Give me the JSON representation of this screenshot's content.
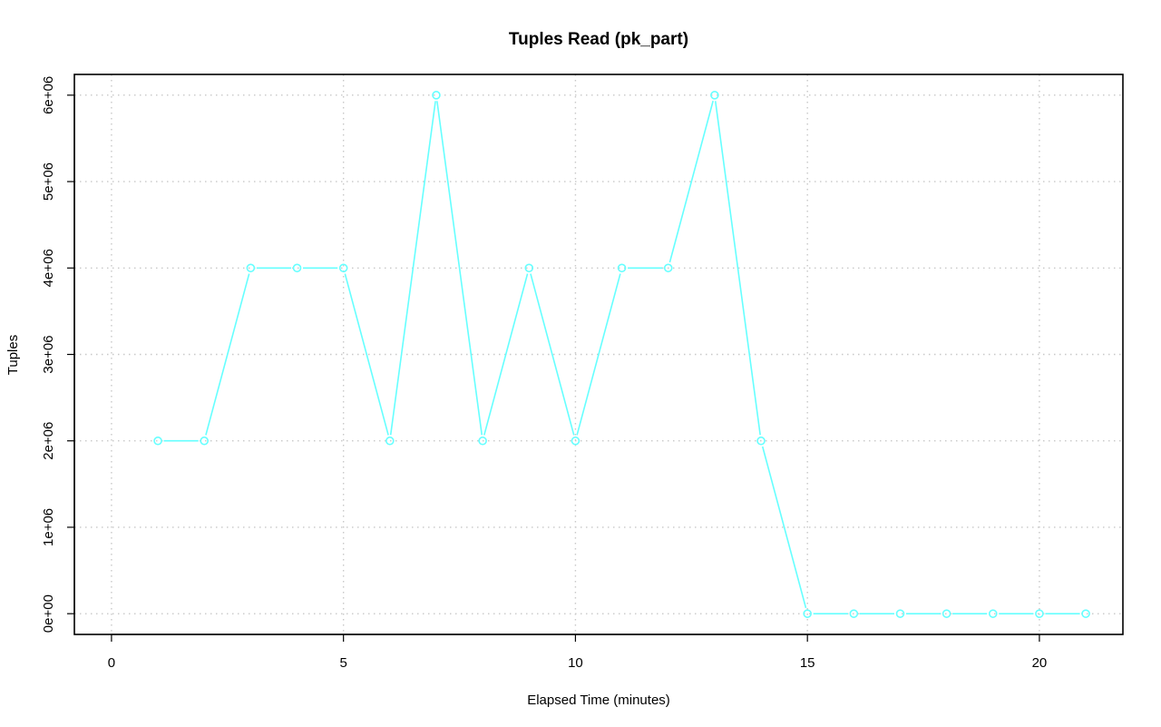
{
  "chart_data": {
    "type": "line",
    "title": "Tuples Read (pk_part)",
    "xlabel": "Elapsed Time (minutes)",
    "ylabel": "Tuples",
    "xlim": [
      -0.8,
      21.8
    ],
    "ylim": [
      -240000,
      6240000
    ],
    "x_ticks": [
      0,
      5,
      10,
      15,
      20
    ],
    "x_tick_labels": [
      "0",
      "5",
      "10",
      "15",
      "20"
    ],
    "y_ticks": [
      0,
      1000000,
      2000000,
      3000000,
      4000000,
      5000000,
      6000000
    ],
    "y_tick_labels": [
      "0e+00",
      "1e+06",
      "2e+06",
      "3e+06",
      "4e+06",
      "5e+06",
      "6e+06"
    ],
    "grid": true,
    "grid_style": "dotted",
    "markers": "open-circle",
    "series": [
      {
        "color": "#66ffff",
        "x": [
          1,
          2,
          3,
          4,
          5,
          6,
          7,
          8,
          9,
          10,
          11,
          12,
          13,
          14,
          15,
          16,
          17,
          18,
          19,
          20,
          21
        ],
        "y": [
          2000000,
          2000000,
          4000000,
          4000000,
          4000000,
          2000000,
          6000000,
          2000000,
          4000000,
          2000000,
          4000000,
          4000000,
          6000000,
          2000000,
          0,
          0,
          0,
          0,
          0,
          0,
          0
        ]
      }
    ]
  }
}
